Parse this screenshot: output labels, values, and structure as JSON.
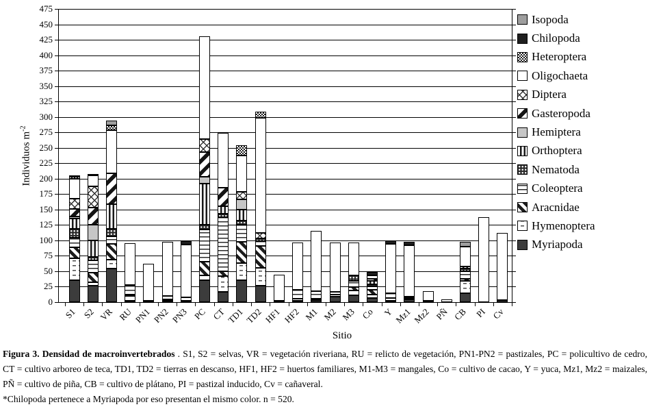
{
  "chart_data": {
    "type": "bar",
    "stacked": true,
    "title": "",
    "xlabel": "Sitio",
    "ylabel": "Individuos m⁻²",
    "ylabel_base": "Individuos m",
    "ylabel_exponent": "-2",
    "ylim": [
      0,
      475
    ],
    "ytick_step": 25,
    "grid": true,
    "legend_position": "right",
    "note": "stack order on bars is reverse of legend order (Myriapoda at bottom)",
    "categories": [
      "S1",
      "S2",
      "VR",
      "RU",
      "PN1",
      "PN2",
      "PN3",
      "PC",
      "CT",
      "TD1",
      "TD2",
      "HF1",
      "HF2",
      "M1",
      "M2",
      "M3",
      "Co",
      "Y",
      "Mz1",
      "Mz2",
      "PÑ",
      "CB",
      "PI",
      "Cv"
    ],
    "series": [
      {
        "name": "Isopoda",
        "pattern": "solid",
        "color": "#9e9e9e",
        "values": [
          0,
          0,
          8,
          0,
          0,
          0,
          0,
          0,
          0,
          0,
          0,
          0,
          0,
          0,
          0,
          0,
          0,
          0,
          0,
          0,
          0,
          8,
          0,
          0
        ]
      },
      {
        "name": "Chilopoda",
        "pattern": "solid",
        "color": "#1f1f1f",
        "values": [
          2,
          0,
          0,
          0,
          0,
          0,
          5,
          0,
          0,
          0,
          0,
          0,
          0,
          0,
          0,
          0,
          6,
          5,
          6,
          0,
          0,
          0,
          0,
          0
        ]
      },
      {
        "name": "Heteroptera",
        "pattern": "checker",
        "values": [
          3,
          2,
          8,
          0,
          0,
          0,
          0,
          0,
          0,
          17,
          10,
          0,
          0,
          0,
          0,
          0,
          0,
          0,
          0,
          0,
          0,
          0,
          0,
          0
        ]
      },
      {
        "name": "Oligochaeta",
        "pattern": "white",
        "values": [
          32,
          18,
          70,
          68,
          60,
          88,
          85,
          166,
          89,
          59,
          187,
          42,
          77,
          98,
          80,
          53,
          5,
          80,
          83,
          16,
          4,
          32,
          138,
          109
        ]
      },
      {
        "name": "Diptera",
        "pattern": "crosshatch",
        "values": [
          17,
          34,
          0,
          0,
          0,
          0,
          0,
          21,
          0,
          12,
          9,
          0,
          0,
          0,
          0,
          0,
          0,
          0,
          0,
          0,
          0,
          0,
          0,
          0
        ]
      },
      {
        "name": "Gasteropoda",
        "pattern": "diag-bold",
        "values": [
          12,
          28,
          50,
          0,
          0,
          0,
          0,
          40,
          30,
          0,
          0,
          0,
          0,
          0,
          0,
          0,
          3,
          0,
          0,
          0,
          0,
          0,
          0,
          0
        ]
      },
      {
        "name": "Hemiptera",
        "pattern": "solid",
        "color": "#c6c6c6",
        "values": [
          3,
          25,
          0,
          0,
          0,
          0,
          0,
          11,
          0,
          17,
          0,
          0,
          0,
          0,
          0,
          0,
          0,
          0,
          0,
          0,
          0,
          0,
          0,
          0
        ]
      },
      {
        "name": "Orthoptera",
        "pattern": "vertical",
        "values": [
          17,
          27,
          40,
          0,
          0,
          0,
          0,
          67,
          12,
          18,
          0,
          0,
          0,
          0,
          0,
          0,
          5,
          0,
          0,
          0,
          0,
          3,
          0,
          0
        ]
      },
      {
        "name": "Nematoda",
        "pattern": "dots-dark",
        "values": [
          14,
          5,
          12,
          0,
          0,
          0,
          0,
          8,
          6,
          7,
          4,
          0,
          0,
          0,
          0,
          9,
          3,
          0,
          0,
          0,
          0,
          4,
          0,
          0
        ]
      },
      {
        "name": "Coleoptera",
        "pattern": "horizontal",
        "values": [
          15,
          20,
          12,
          15,
          0,
          6,
          5,
          52,
          88,
          28,
          8,
          0,
          14,
          12,
          4,
          10,
          6,
          8,
          2,
          0,
          0,
          12,
          0,
          0
        ]
      },
      {
        "name": "Aracnidae",
        "pattern": "diag",
        "values": [
          18,
          16,
          25,
          2,
          0,
          0,
          0,
          22,
          8,
          34,
          36,
          0,
          0,
          0,
          0,
          5,
          8,
          0,
          0,
          0,
          0,
          3,
          0,
          0
        ]
      },
      {
        "name": "Hymenoptera",
        "pattern": "dash",
        "values": [
          35,
          5,
          14,
          8,
          0,
          2,
          0,
          8,
          25,
          28,
          29,
          0,
          3,
          2,
          3,
          8,
          5,
          4,
          2,
          0,
          0,
          20,
          0,
          0
        ]
      },
      {
        "name": "Myriapoda",
        "pattern": "solid",
        "color": "#3c3c3c",
        "values": [
          35,
          27,
          54,
          2,
          2,
          1,
          2,
          35,
          17,
          35,
          27,
          2,
          2,
          3,
          9,
          11,
          7,
          2,
          4,
          1,
          0,
          14,
          0,
          3
        ]
      }
    ],
    "totals": [
      203,
      207,
      293,
      95,
      62,
      97,
      97,
      430,
      275,
      255,
      310,
      44,
      96,
      115,
      96,
      96,
      48,
      99,
      97,
      17,
      4,
      96,
      138,
      112
    ]
  },
  "caption": {
    "bold": "Figura 3. Densidad de macroinvertebrados",
    "text": " . S1, S2 = selvas, VR = vegetación riveriana, RU = relicto de vegetación,  PN1-PN2 = pastizales, PC = policultivo de cedro, CT = cultivo arboreo de teca, TD1, TD2 = tierras en descanso, HF1, HF2 = huertos familiares, M1-M3 = mangales, Co = cultivo de cacao, Y = yuca, Mz1, Mz2 = maizales, PÑ = cultivo de piña, CB = cultivo de plátano, PI = pastizal inducido, Cv = cañaveral.",
    "footnote": "*Chilopoda pertenece a Myriapoda por eso presentan el mismo color. n = 520."
  }
}
